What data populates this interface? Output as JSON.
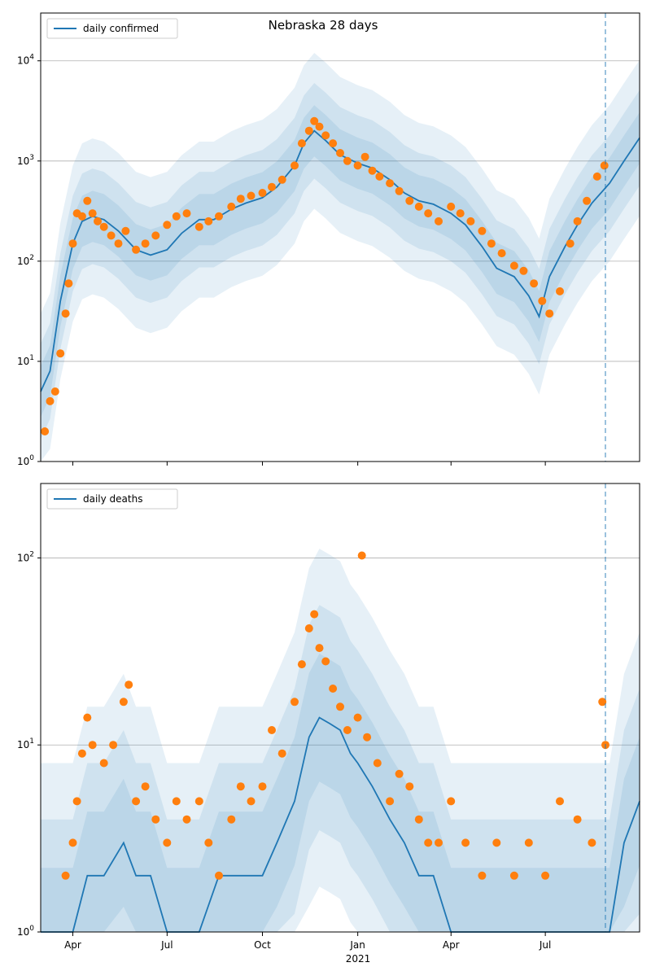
{
  "title": "Nebraska 28 days",
  "colors": {
    "model": "#1f77b4",
    "observed": "#ff7f0e",
    "band": "#1f77b4",
    "grid": "#b0b0b0"
  },
  "x_axis": {
    "start": "2020-03-01",
    "end": "2021-09-30",
    "ticks": [
      {
        "date": "2020-04-01",
        "label": "Apr"
      },
      {
        "date": "2020-07-01",
        "label": "Jul"
      },
      {
        "date": "2020-10-01",
        "label": "Oct"
      },
      {
        "date": "2021-01-01",
        "label": "Jan"
      },
      {
        "date": "2021-04-01",
        "label": "Apr"
      },
      {
        "date": "2021-07-01",
        "label": "Jul"
      }
    ],
    "year_label": "2021",
    "forecast_start": "2021-08-28"
  },
  "chart_data": [
    {
      "type": "line",
      "scale": "log",
      "ylim": [
        1,
        30000
      ],
      "yticks": [
        1,
        10,
        100,
        1000,
        10000
      ],
      "ytick_labels": [
        "10^0",
        "10^1",
        "10^2",
        "10^3",
        "10^4"
      ],
      "grid": "horizontal",
      "legend": "top-left",
      "series": [
        {
          "name": "daily confirmed",
          "type": "line",
          "x": [
            "2020-03-01",
            "2020-03-10",
            "2020-03-20",
            "2020-04-01",
            "2020-04-10",
            "2020-04-20",
            "2020-05-01",
            "2020-05-15",
            "2020-06-01",
            "2020-06-15",
            "2020-07-01",
            "2020-07-15",
            "2020-08-01",
            "2020-08-15",
            "2020-09-01",
            "2020-09-15",
            "2020-10-01",
            "2020-10-15",
            "2020-11-01",
            "2020-11-10",
            "2020-11-20",
            "2020-12-01",
            "2020-12-15",
            "2021-01-01",
            "2021-01-15",
            "2021-02-01",
            "2021-02-15",
            "2021-03-01",
            "2021-03-15",
            "2021-04-01",
            "2021-04-15",
            "2021-05-01",
            "2021-05-15",
            "2021-06-01",
            "2021-06-15",
            "2021-06-25",
            "2021-07-05",
            "2021-07-20",
            "2021-08-01",
            "2021-08-15",
            "2021-09-01",
            "2021-09-15",
            "2021-09-30"
          ],
          "y": [
            5,
            8,
            40,
            150,
            250,
            280,
            260,
            200,
            130,
            115,
            130,
            190,
            260,
            260,
            330,
            380,
            430,
            550,
            900,
            1500,
            2000,
            1600,
            1150,
            950,
            850,
            650,
            480,
            400,
            370,
            300,
            230,
            140,
            85,
            70,
            45,
            28,
            70,
            140,
            230,
            380,
            600,
            1000,
            1700
          ]
        },
        {
          "name": "",
          "type": "scatter",
          "x": [
            "2020-03-05",
            "2020-03-10",
            "2020-03-15",
            "2020-03-20",
            "2020-03-25",
            "2020-03-28",
            "2020-04-01",
            "2020-04-05",
            "2020-04-10",
            "2020-04-15",
            "2020-04-20",
            "2020-04-25",
            "2020-05-01",
            "2020-05-08",
            "2020-05-15",
            "2020-05-22",
            "2020-06-01",
            "2020-06-10",
            "2020-06-20",
            "2020-07-01",
            "2020-07-10",
            "2020-07-20",
            "2020-08-01",
            "2020-08-10",
            "2020-08-20",
            "2020-09-01",
            "2020-09-10",
            "2020-09-20",
            "2020-10-01",
            "2020-10-10",
            "2020-10-20",
            "2020-11-01",
            "2020-11-08",
            "2020-11-15",
            "2020-11-20",
            "2020-11-25",
            "2020-12-01",
            "2020-12-08",
            "2020-12-15",
            "2020-12-22",
            "2021-01-01",
            "2021-01-08",
            "2021-01-15",
            "2021-01-22",
            "2021-02-01",
            "2021-02-10",
            "2021-02-20",
            "2021-03-01",
            "2021-03-10",
            "2021-03-20",
            "2021-04-01",
            "2021-04-10",
            "2021-04-20",
            "2021-05-01",
            "2021-05-10",
            "2021-05-20",
            "2021-06-01",
            "2021-06-10",
            "2021-06-20",
            "2021-06-28",
            "2021-07-05",
            "2021-07-15",
            "2021-07-25",
            "2021-08-01",
            "2021-08-10",
            "2021-08-20",
            "2021-08-27"
          ],
          "y": [
            2,
            4,
            5,
            12,
            30,
            60,
            150,
            300,
            280,
            400,
            300,
            250,
            220,
            180,
            150,
            200,
            130,
            150,
            180,
            230,
            280,
            300,
            220,
            250,
            280,
            350,
            420,
            450,
            480,
            550,
            650,
            900,
            1500,
            2000,
            2500,
            2200,
            1800,
            1500,
            1200,
            1000,
            900,
            1100,
            800,
            700,
            600,
            500,
            400,
            350,
            300,
            250,
            350,
            300,
            250,
            200,
            150,
            120,
            90,
            80,
            60,
            40,
            30,
            50,
            150,
            250,
            400,
            700,
            900
          ]
        }
      ]
    },
    {
      "type": "line",
      "scale": "log",
      "ylim": [
        1,
        250
      ],
      "yticks": [
        1,
        10,
        100
      ],
      "ytick_labels": [
        "10^0",
        "10^1",
        "10^2"
      ],
      "grid": "horizontal",
      "legend": "top-left",
      "series": [
        {
          "name": "daily deaths",
          "type": "line",
          "x": [
            "2020-03-01",
            "2020-03-25",
            "2020-04-01",
            "2020-04-15",
            "2020-05-01",
            "2020-05-20",
            "2020-06-01",
            "2020-06-15",
            "2020-07-01",
            "2020-07-15",
            "2020-08-01",
            "2020-08-20",
            "2020-09-01",
            "2020-09-15",
            "2020-10-01",
            "2020-10-15",
            "2020-11-01",
            "2020-11-15",
            "2020-11-25",
            "2020-12-05",
            "2020-12-15",
            "2020-12-25",
            "2021-01-01",
            "2021-01-15",
            "2021-02-01",
            "2021-02-15",
            "2021-03-01",
            "2021-03-15",
            "2021-04-01",
            "2021-05-01",
            "2021-06-01",
            "2021-07-01",
            "2021-08-01",
            "2021-09-01",
            "2021-09-15",
            "2021-09-30"
          ],
          "y": [
            1,
            1,
            1,
            2,
            2,
            3,
            2,
            2,
            1,
            1,
            1,
            2,
            2,
            2,
            2,
            3,
            5,
            11,
            14,
            13,
            12,
            9,
            8,
            6,
            4,
            3,
            2,
            2,
            1,
            1,
            1,
            1,
            1,
            1,
            3,
            5
          ]
        },
        {
          "name": "",
          "type": "scatter",
          "x": [
            "2020-03-25",
            "2020-04-01",
            "2020-04-05",
            "2020-04-10",
            "2020-04-15",
            "2020-04-20",
            "2020-05-01",
            "2020-05-10",
            "2020-05-20",
            "2020-05-25",
            "2020-06-01",
            "2020-06-10",
            "2020-06-20",
            "2020-07-01",
            "2020-07-10",
            "2020-07-20",
            "2020-08-01",
            "2020-08-10",
            "2020-08-20",
            "2020-09-01",
            "2020-09-10",
            "2020-09-20",
            "2020-10-01",
            "2020-10-10",
            "2020-10-20",
            "2020-11-01",
            "2020-11-08",
            "2020-11-15",
            "2020-11-20",
            "2020-11-25",
            "2020-12-01",
            "2020-12-08",
            "2020-12-15",
            "2020-12-22",
            "2021-01-01",
            "2021-01-05",
            "2021-01-10",
            "2021-01-20",
            "2021-02-01",
            "2021-02-10",
            "2021-02-20",
            "2021-03-01",
            "2021-03-10",
            "2021-03-20",
            "2021-04-01",
            "2021-04-15",
            "2021-05-01",
            "2021-05-15",
            "2021-06-01",
            "2021-06-15",
            "2021-07-01",
            "2021-07-15",
            "2021-08-01",
            "2021-08-15",
            "2021-08-25",
            "2021-08-28"
          ],
          "y": [
            2,
            3,
            5,
            9,
            14,
            10,
            8,
            10,
            17,
            21,
            5,
            6,
            4,
            3,
            5,
            4,
            5,
            3,
            2,
            4,
            6,
            5,
            6,
            12,
            9,
            17,
            27,
            42,
            50,
            33,
            28,
            20,
            16,
            12,
            14,
            103,
            11,
            8,
            5,
            7,
            6,
            4,
            3,
            3,
            5,
            3,
            2,
            3,
            2,
            3,
            2,
            5,
            4,
            3,
            17,
            10
          ]
        }
      ]
    }
  ]
}
